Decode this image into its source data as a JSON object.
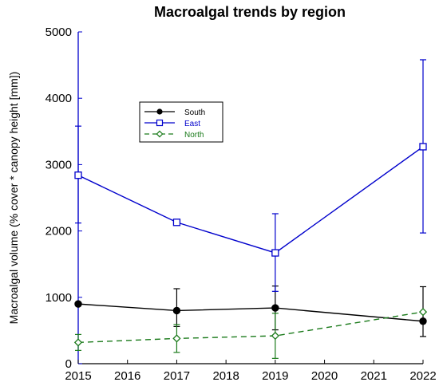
{
  "chart_data": {
    "type": "line",
    "title": "Macroalgal trends by region",
    "xlabel": "",
    "ylabel": "Macroalgal volume (% cover * canopy height [mm])",
    "xlim": [
      2015,
      2022
    ],
    "ylim": [
      0,
      5000
    ],
    "x_ticks": [
      2015,
      2016,
      2017,
      2018,
      2019,
      2020,
      2021,
      2022
    ],
    "y_ticks": [
      0,
      1000,
      2000,
      3000,
      4000,
      5000
    ],
    "legend_position": "upper-left inside",
    "grid": false,
    "series": [
      {
        "name": "South",
        "color": "#000000",
        "line_style": "solid",
        "marker": "filled-circle",
        "x": [
          2015,
          2017,
          2019,
          2022
        ],
        "y": [
          900,
          800,
          840,
          640
        ],
        "error": [
          [
            null,
            null
          ],
          [
            560,
            1130
          ],
          [
            510,
            1170
          ],
          [
            410,
            1160
          ]
        ]
      },
      {
        "name": "East",
        "color": "#0000cc",
        "line_style": "solid",
        "marker": "open-square",
        "x": [
          2015,
          2017,
          2019,
          2022
        ],
        "y": [
          2840,
          2130,
          1670,
          3270
        ],
        "error": [
          [
            2120,
            3580
          ],
          [
            null,
            null
          ],
          [
            1090,
            2260
          ],
          [
            1970,
            4580
          ]
        ]
      },
      {
        "name": "North",
        "color": "#1a7a1a",
        "line_style": "dashed",
        "marker": "open-diamond",
        "x": [
          2015,
          2017,
          2019,
          2022
        ],
        "y": [
          320,
          380,
          420,
          780
        ],
        "error": [
          [
            200,
            440
          ],
          [
            170,
            590
          ],
          [
            80,
            760
          ],
          [
            null,
            null
          ]
        ]
      }
    ]
  }
}
